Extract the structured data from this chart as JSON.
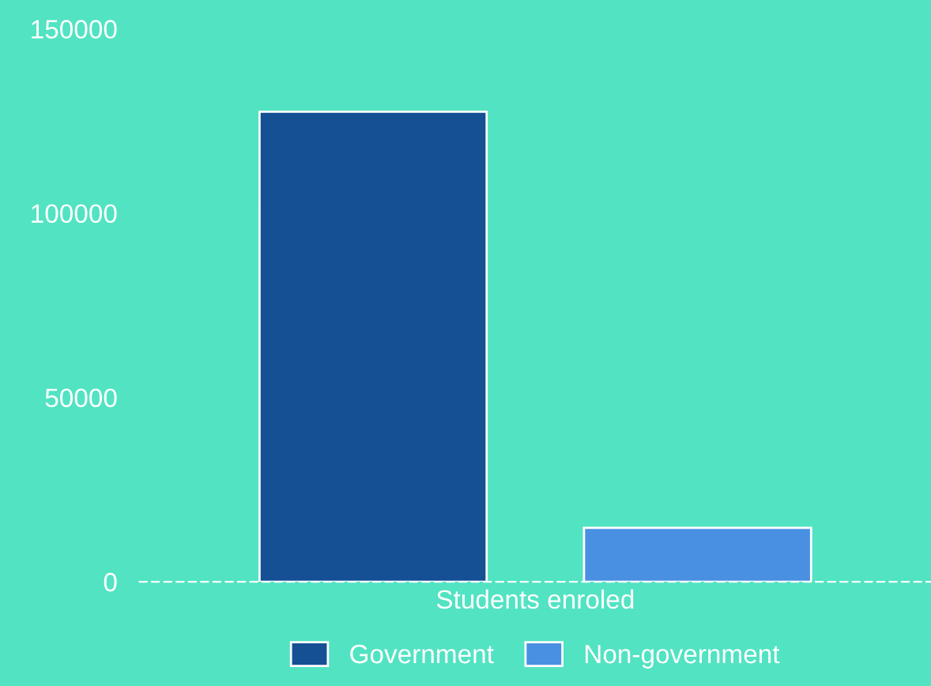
{
  "chart_data": {
    "type": "bar",
    "categories": [
      "Students enroled"
    ],
    "series": [
      {
        "name": "Government",
        "color": "#154f94",
        "values": [
          127500
        ]
      },
      {
        "name": "Non-government",
        "color": "#4a90e2",
        "values": [
          14600
        ]
      }
    ],
    "ylim": [
      0,
      150000
    ],
    "yticks": [
      0,
      50000,
      100000,
      150000
    ],
    "grid": false,
    "legend": "bottom"
  }
}
